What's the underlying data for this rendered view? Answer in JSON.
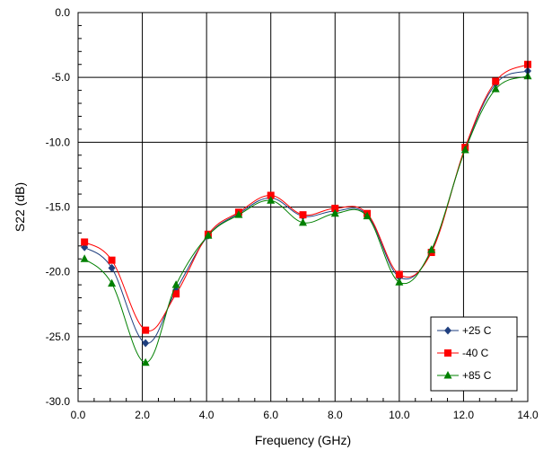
{
  "chart_data": {
    "type": "line",
    "title": "",
    "xlabel": "Frequency (GHz)",
    "ylabel": "S22 (dB)",
    "xlim": [
      0,
      14
    ],
    "ylim": [
      -30,
      0
    ],
    "x_ticks": [
      "0.0",
      "2.0",
      "4.0",
      "6.0",
      "8.0",
      "10.0",
      "12.0",
      "14.0"
    ],
    "y_ticks": [
      "0.0",
      "-5.0",
      "-10.0",
      "-15.0",
      "-20.0",
      "-25.0",
      "-30.0"
    ],
    "grid": true,
    "legend_position": "bottom-right",
    "series": [
      {
        "name": "+25 C",
        "color": "#1f3f7f",
        "marker": "diamond",
        "x": [
          0.2,
          1.05,
          2.1,
          3.05,
          4.05,
          5.0,
          6.0,
          7.0,
          8.0,
          9.0,
          10.0,
          11.0,
          12.05,
          13.0,
          14.0
        ],
        "y": [
          -18.1,
          -19.7,
          -25.5,
          -21.4,
          -17.2,
          -15.5,
          -14.3,
          -15.7,
          -15.3,
          -15.6,
          -20.4,
          -18.4,
          -10.5,
          -5.5,
          -4.5
        ]
      },
      {
        "name": "-40 C",
        "color": "#ff0000",
        "marker": "square",
        "x": [
          0.2,
          1.05,
          2.1,
          3.05,
          4.05,
          5.0,
          6.0,
          7.0,
          8.0,
          9.0,
          10.0,
          11.0,
          12.05,
          13.0,
          14.0
        ],
        "y": [
          -17.7,
          -19.1,
          -24.5,
          -21.7,
          -17.1,
          -15.4,
          -14.1,
          -15.6,
          -15.1,
          -15.5,
          -20.2,
          -18.5,
          -10.4,
          -5.3,
          -4.0
        ]
      },
      {
        "name": "+85 C",
        "color": "#008000",
        "marker": "triangle",
        "x": [
          0.2,
          1.05,
          2.1,
          3.05,
          4.05,
          5.0,
          6.0,
          7.0,
          8.0,
          9.0,
          10.0,
          11.0,
          12.05,
          13.0,
          14.0
        ],
        "y": [
          -19.0,
          -20.9,
          -27.0,
          -21.0,
          -17.2,
          -15.6,
          -14.5,
          -16.2,
          -15.5,
          -15.7,
          -20.8,
          -18.3,
          -10.6,
          -5.9,
          -4.9
        ]
      }
    ]
  }
}
